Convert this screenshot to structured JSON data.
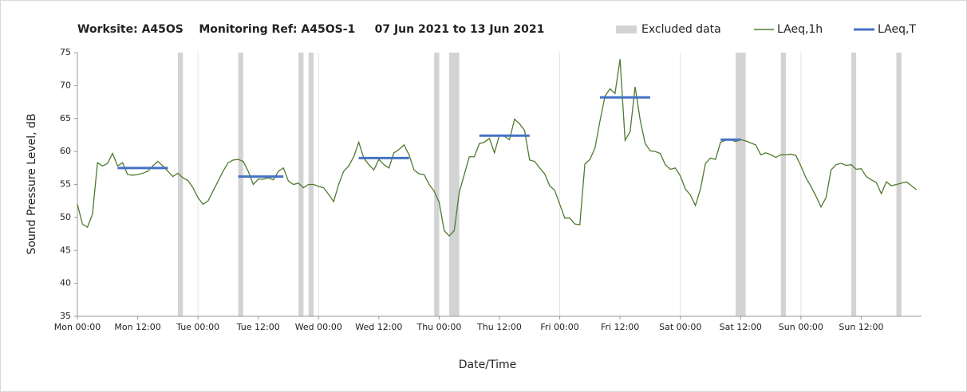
{
  "chart_data": {
    "type": "line",
    "title": "Worksite: A45OS    Monitoring Ref: A45OS-1     07 Jun 2021 to 13 Jun 2021",
    "x_label": "Date/Time",
    "y_label": "Sound Pressure Level, dB",
    "xlim": [
      0,
      168
    ],
    "ylim": [
      35,
      75
    ],
    "yticks": [
      35,
      40,
      45,
      50,
      55,
      60,
      65,
      70,
      75
    ],
    "xticks": [
      {
        "value": 0,
        "label": "Mon 00:00"
      },
      {
        "value": 12,
        "label": "Mon 12:00"
      },
      {
        "value": 24,
        "label": "Tue 00:00"
      },
      {
        "value": 36,
        "label": "Tue 12:00"
      },
      {
        "value": 48,
        "label": "Wed 00:00"
      },
      {
        "value": 60,
        "label": "Wed 12:00"
      },
      {
        "value": 72,
        "label": "Thu 00:00"
      },
      {
        "value": 84,
        "label": "Thu 12:00"
      },
      {
        "value": 96,
        "label": "Fri 00:00"
      },
      {
        "value": 108,
        "label": "Fri 12:00"
      },
      {
        "value": 120,
        "label": "Sat 00:00"
      },
      {
        "value": 132,
        "label": "Sat 12:00"
      },
      {
        "value": 144,
        "label": "Sun 00:00"
      },
      {
        "value": 156,
        "label": "Sun 12:00"
      }
    ],
    "excluded": {
      "name": "Excluded data",
      "color": "#d3d3d3",
      "start": [
        20,
        32,
        44,
        46,
        71,
        74,
        131,
        140,
        154,
        163
      ],
      "end": [
        21,
        33,
        45,
        47,
        72,
        76,
        133,
        141,
        155,
        164
      ]
    },
    "series": [
      {
        "name": "LAeq,1h",
        "color": "#4e7a2e",
        "x": [
          0,
          1,
          2,
          3,
          4,
          5,
          6,
          7,
          8,
          9,
          10,
          11,
          12,
          13,
          14,
          15,
          16,
          17,
          18,
          19,
          20,
          21,
          22,
          23,
          24,
          25,
          26,
          27,
          28,
          29,
          30,
          31,
          32,
          33,
          34,
          35,
          36,
          37,
          38,
          39,
          40,
          41,
          42,
          43,
          44,
          45,
          46,
          47,
          48,
          49,
          50,
          51,
          52,
          53,
          54,
          55,
          56,
          57,
          58,
          59,
          60,
          61,
          62,
          63,
          64,
          65,
          66,
          67,
          68,
          69,
          70,
          71,
          72,
          73,
          74,
          75,
          76,
          77,
          78,
          79,
          80,
          81,
          82,
          83,
          84,
          85,
          86,
          87,
          88,
          89,
          90,
          91,
          92,
          93,
          94,
          95,
          96,
          97,
          98,
          99,
          100,
          101,
          102,
          103,
          104,
          105,
          106,
          107,
          108,
          109,
          110,
          111,
          112,
          113,
          114,
          115,
          116,
          117,
          118,
          119,
          120,
          121,
          122,
          123,
          124,
          125,
          126,
          127,
          128,
          129,
          130,
          131,
          132,
          133,
          134,
          135,
          136,
          137,
          138,
          139,
          140,
          141,
          142,
          143,
          144,
          145,
          146,
          147,
          148,
          149,
          150,
          151,
          152,
          153,
          154,
          155,
          156,
          157,
          158,
          159,
          160,
          161,
          162,
          163,
          164,
          165,
          166,
          167
        ],
        "values": [
          52,
          49,
          48.5,
          50.5,
          58.3,
          57.8,
          58.2,
          59.7,
          57.8,
          58.3,
          56.5,
          56.4,
          56.5,
          56.7,
          57,
          57.8,
          58.5,
          57.8,
          57,
          56.2,
          56.7,
          56,
          55.6,
          54.5,
          53,
          52,
          52.5,
          54,
          55.5,
          57,
          58.3,
          58.7,
          58.8,
          58.5,
          57,
          55,
          55.8,
          55.8,
          56,
          55.7,
          57,
          57.5,
          55.5,
          55,
          55.2,
          54.5,
          55,
          55,
          54.7,
          54.5,
          53.5,
          52.4,
          55,
          57,
          57.8,
          59.2,
          61.4,
          59,
          58,
          57.2,
          58.8,
          58,
          57.5,
          59.8,
          60.3,
          61,
          59.5,
          57.2,
          56.6,
          56.5,
          55,
          54,
          52.3,
          48,
          47.2,
          48,
          53.8,
          56.5,
          59.2,
          59.2,
          61.2,
          61.4,
          62,
          59.8,
          62.5,
          62.3,
          61.8,
          64.9,
          64.2,
          63.2,
          58.7,
          58.5,
          57.5,
          56.6,
          54.8,
          54.1,
          52,
          49.9,
          49.9,
          49,
          48.9,
          58.1,
          58.8,
          60.5,
          64.6,
          68.4,
          69.5,
          68.8,
          74,
          61.7,
          63,
          69.8,
          64.8,
          61.2,
          60.1,
          60,
          59.7,
          58,
          57.3,
          57.5,
          56.3,
          54.3,
          53.4,
          51.8,
          54.3,
          58.2,
          59,
          58.8,
          61.4,
          61.7,
          61.8,
          61.5,
          61.8,
          61.6,
          61.3,
          61,
          59.5,
          59.8,
          59.5,
          59.1,
          59.5,
          59.5,
          59.6,
          59.4,
          57.8,
          56,
          54.7,
          53.2,
          51.6,
          53,
          57.2,
          58,
          58.2,
          57.9,
          58,
          57.3,
          57.4,
          56.2,
          55.7,
          55.3,
          53.6,
          55.4,
          54.8,
          55,
          55.2,
          55.4,
          54.8,
          54.2
        ]
      }
    ],
    "levels": {
      "name": "LAeq,T",
      "color": "#4472c4",
      "start": [
        8,
        32,
        56,
        80,
        104,
        128
      ],
      "end": [
        18,
        41,
        66,
        90,
        114,
        132
      ],
      "values": [
        57.5,
        56.2,
        59,
        62.4,
        68.2,
        61.8
      ]
    }
  }
}
